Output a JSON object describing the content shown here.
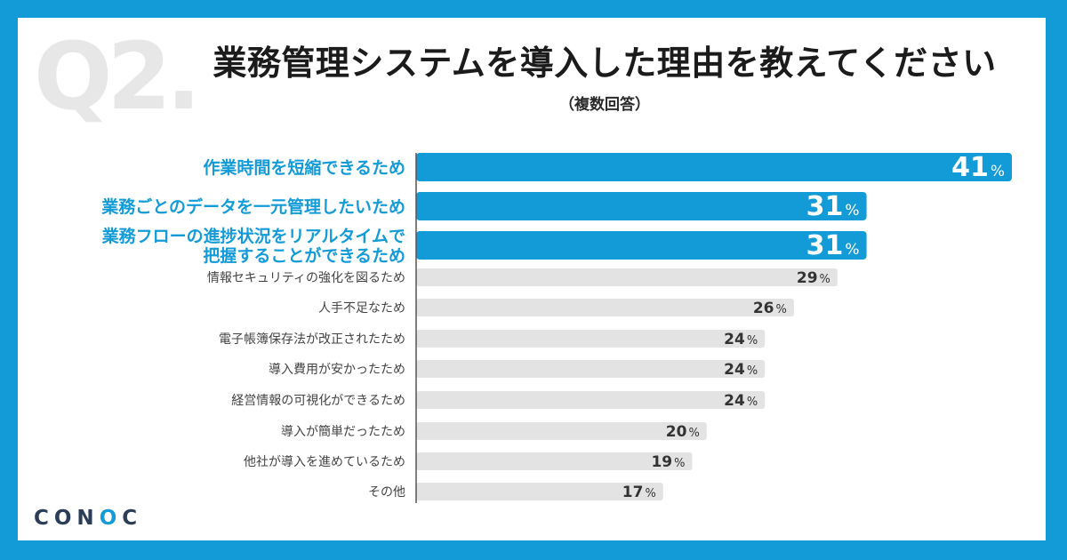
{
  "question_mark": "Q2.",
  "title": "業務管理システムを導入した理由を教えてください",
  "subtitle": "（複数回答）",
  "logo": {
    "pre": "CON",
    "accent": "O",
    "post": "C"
  },
  "colors": {
    "frame": "#139bd8",
    "highlight": "#139bd8",
    "bar_gray": "#e3e3e3",
    "label_gray": "#444444",
    "value_dark": "#333333"
  },
  "chart_data": {
    "type": "bar",
    "orientation": "horizontal",
    "unit": "%",
    "categories": [
      "作業時間を短縮できるため",
      "業務ごとのデータを一元管理したいため",
      "業務フローの進捗状況をリアルタイムで把握することができるため",
      "情報セキュリティの強化を図るため",
      "人手不足なため",
      "電子帳簿保存法が改正されたため",
      "導入費用が安かったため",
      "経営情報の可視化ができるため",
      "導入が簡単だったため",
      "他社が導入を進めているため",
      "その他"
    ],
    "category_lines": [
      [
        "作業時間を短縮できるため"
      ],
      [
        "業務ごとのデータを一元管理したいため"
      ],
      [
        "業務フローの進捗状況をリアルタイムで",
        "把握することができるため"
      ],
      [
        "情報セキュリティの強化を図るため"
      ],
      [
        "人手不足なため"
      ],
      [
        "電子帳簿保存法が改正されたため"
      ],
      [
        "導入費用が安かったため"
      ],
      [
        "経営情報の可視化ができるため"
      ],
      [
        "導入が簡単だったため"
      ],
      [
        "他社が導入を進めているため"
      ],
      [
        "その他"
      ]
    ],
    "values": [
      41,
      31,
      31,
      29,
      26,
      24,
      24,
      24,
      20,
      19,
      17
    ],
    "highlighted": [
      true,
      true,
      true,
      false,
      false,
      false,
      false,
      false,
      false,
      false,
      false
    ],
    "xlim": [
      0,
      41
    ]
  }
}
